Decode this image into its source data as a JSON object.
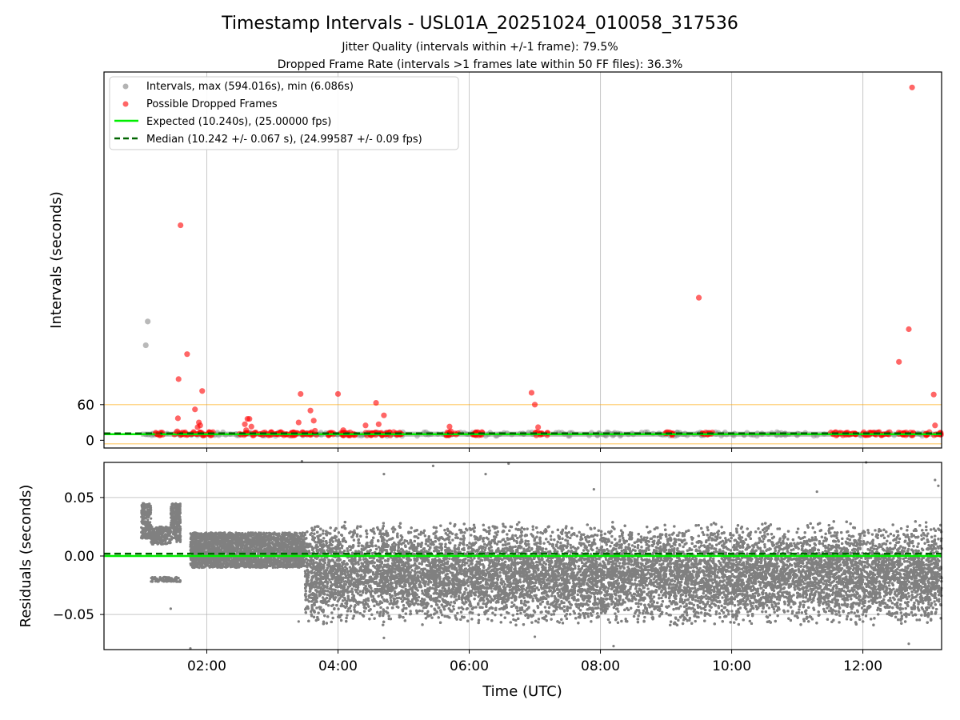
{
  "chart_data": [
    {
      "type": "scatter",
      "panel": "top",
      "title": "Timestamp Intervals - USL01A_20251024_010058_317536",
      "subtitles": [
        "Jitter Quality (intervals within +/-1 frame): 79.5%",
        "Dropped Frame Rate (intervals >1 frames late within 50 FF files): 36.3%"
      ],
      "xlabel": "",
      "ylabel": "Intervals (seconds)",
      "xlim": [
        0.4333,
        13.2
      ],
      "ylim": [
        -13,
        620
      ],
      "yticks": [
        0,
        60
      ],
      "ytick_labels": [
        "0",
        "60"
      ],
      "xticks": [
        2,
        4,
        6,
        8,
        10,
        12
      ],
      "threshold_lines": [
        {
          "y": 60,
          "color": "#ffa500"
        },
        {
          "y": -6,
          "color": "#ffa500"
        }
      ],
      "legend_position": "upper-left",
      "legend": [
        {
          "label": "Intervals, max (594.016s), min (6.086s)",
          "kind": "marker",
          "color": "#808080"
        },
        {
          "label": "Possible Dropped Frames",
          "kind": "marker",
          "color": "#ff0000"
        },
        {
          "label": "Expected (10.240s), (25.00000 fps)",
          "kind": "solid",
          "color": "#00ee00"
        },
        {
          "label": "Median (10.242 +/- 0.067 s), (24.99587 +/- 0.09 fps)",
          "kind": "dashed",
          "color": "#006400"
        }
      ],
      "series": [
        {
          "name": "Expected",
          "kind": "hline",
          "y": 10.24,
          "color": "#00ee00"
        },
        {
          "name": "Median",
          "kind": "hline",
          "y": 10.242,
          "color": "#006400"
        },
        {
          "name": "Intervals (outliers)",
          "color": "#808080",
          "points": [
            [
              1.07,
              160
            ],
            [
              1.1,
              200
            ]
          ]
        },
        {
          "name": "Intervals dense band",
          "color": "#808080",
          "bands": [
            [
              1.0,
              13.2,
              6.1,
              14.5
            ]
          ]
        },
        {
          "name": "Possible Dropped Frames",
          "color": "#ff0000",
          "points": [
            [
              1.25,
              10
            ],
            [
              1.55,
              15
            ],
            [
              1.56,
              37
            ],
            [
              1.57,
              103
            ],
            [
              1.6,
              362
            ],
            [
              1.7,
              145
            ],
            [
              1.82,
              52
            ],
            [
              1.88,
              30
            ],
            [
              1.9,
              25
            ],
            [
              1.93,
              83
            ],
            [
              1.86,
              22
            ],
            [
              2.58,
              27
            ],
            [
              2.62,
              36
            ],
            [
              2.65,
              36
            ],
            [
              2.68,
              23
            ],
            [
              2.6,
              17
            ],
            [
              3.4,
              30
            ],
            [
              3.43,
              78
            ],
            [
              3.58,
              50
            ],
            [
              3.63,
              33
            ],
            [
              3.65,
              16
            ],
            [
              4.0,
              78
            ],
            [
              4.08,
              17
            ],
            [
              4.42,
              25
            ],
            [
              4.58,
              63
            ],
            [
              4.62,
              27
            ],
            [
              4.7,
              42
            ],
            [
              5.7,
              23
            ],
            [
              5.72,
              15
            ],
            [
              6.95,
              80
            ],
            [
              7.0,
              60
            ],
            [
              7.05,
              22
            ],
            [
              9.5,
              240
            ],
            [
              12.55,
              132
            ],
            [
              12.7,
              187
            ],
            [
              12.75,
              594
            ],
            [
              13.08,
              77
            ],
            [
              13.1,
              25
            ]
          ],
          "clusters": [
            [
              1.2,
              1.35
            ],
            [
              1.5,
              2.1
            ],
            [
              2.5,
              3.4
            ],
            [
              3.45,
              3.7
            ],
            [
              3.85,
              4.3
            ],
            [
              4.4,
              4.98
            ],
            [
              5.65,
              5.85
            ],
            [
              5.95,
              6.2
            ],
            [
              7.0,
              7.2
            ],
            [
              8.98,
              9.15
            ],
            [
              9.55,
              9.72
            ],
            [
              11.5,
              11.92
            ],
            [
              12.0,
              12.42
            ],
            [
              12.5,
              12.78
            ],
            [
              12.95,
              13.2
            ]
          ]
        }
      ]
    },
    {
      "type": "scatter",
      "panel": "bottom",
      "xlabel": "Time (UTC)",
      "ylabel": "Residuals (seconds)",
      "xlim": [
        0.4333,
        13.2
      ],
      "ylim": [
        -0.08,
        0.08
      ],
      "yticks": [
        -0.05,
        0.0,
        0.05
      ],
      "ytick_labels": [
        "−0.05",
        "0.00",
        "0.05"
      ],
      "xticks": [
        2,
        4,
        6,
        8,
        10,
        12
      ],
      "xtick_labels": [
        "02:00",
        "04:00",
        "06:00",
        "08:00",
        "10:00",
        "12:00"
      ],
      "series": [
        {
          "name": "Expected",
          "kind": "hline",
          "y": 0.0,
          "color": "#00ee00"
        },
        {
          "name": "Median",
          "kind": "hline",
          "y": 0.002,
          "color": "#006400"
        },
        {
          "name": "Residuals",
          "color": "#808080",
          "regions": [
            {
              "x": [
                1.0,
                1.15
              ],
              "y": [
                0.015,
                0.045
              ]
            },
            {
              "x": [
                1.15,
                1.45
              ],
              "y": [
                0.01,
                0.025
              ]
            },
            {
              "x": [
                1.15,
                1.45
              ],
              "y": [
                -0.022,
                -0.018
              ]
            },
            {
              "x": [
                1.45,
                1.6
              ],
              "y": [
                0.012,
                0.045
              ]
            },
            {
              "x": [
                1.45,
                1.6
              ],
              "y": [
                -0.022,
                -0.018
              ]
            },
            {
              "x": [
                1.75,
                3.5
              ],
              "y": [
                -0.01,
                0.02
              ]
            },
            {
              "x": [
                3.5,
                13.2
              ],
              "y": [
                -0.06,
                0.03
              ]
            }
          ],
          "outliers": [
            [
              1.03,
              0.045
            ],
            [
              1.45,
              -0.045
            ],
            [
              1.75,
              -0.079
            ],
            [
              3.45,
              0.081
            ],
            [
              3.4,
              -0.056
            ],
            [
              4.7,
              0.07
            ],
            [
              4.7,
              -0.07
            ],
            [
              5.45,
              0.077
            ],
            [
              6.25,
              0.07
            ],
            [
              6.6,
              0.079
            ],
            [
              7.0,
              -0.069
            ],
            [
              7.9,
              0.057
            ],
            [
              8.2,
              -0.077
            ],
            [
              11.3,
              0.055
            ],
            [
              12.05,
              0.08
            ],
            [
              12.7,
              -0.075
            ],
            [
              13.1,
              0.065
            ],
            [
              13.15,
              0.06
            ]
          ]
        }
      ]
    }
  ]
}
